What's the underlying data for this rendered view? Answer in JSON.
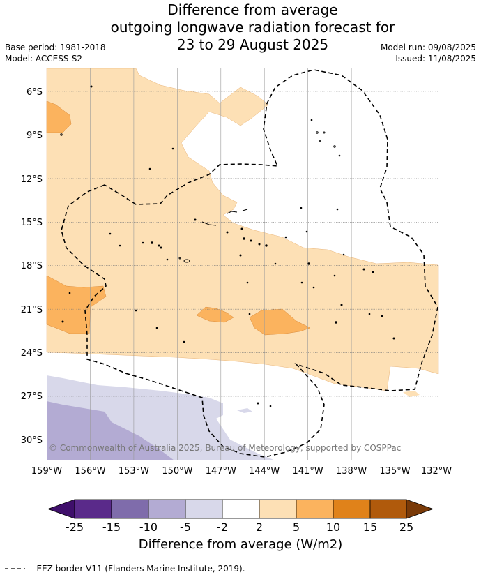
{
  "header": {
    "title_lines": [
      "Difference from average",
      "outgoing longwave radiation forecast for",
      "23 to 29 August 2025"
    ],
    "base_period": "Base period: 1981-2018",
    "model": "Model: ACCESS-S2",
    "model_run": "Model run: 09/08/2025",
    "issued": "Issued: 11/08/2025"
  },
  "map": {
    "lon_labels": [
      "159°W",
      "156°W",
      "153°W",
      "150°W",
      "147°W",
      "144°W",
      "141°W",
      "138°W",
      "135°W",
      "132°W"
    ],
    "lat_labels": [
      "6°S",
      "9°S",
      "12°S",
      "15°S",
      "18°S",
      "21°S",
      "24°S",
      "27°S",
      "30°S"
    ],
    "copyright": "© Commonwealth of Australia 2025, Bureau of Meteorology, supported by COSPPac",
    "legend_line": "-- EEZ border V11 (Flanders Marine Institute, 2019)."
  },
  "colorbar": {
    "label": "Difference from average (W/m2)",
    "tick_labels": [
      "-25",
      "-15",
      "-10",
      "-5",
      "-2",
      "2",
      "5",
      "10",
      "15",
      "25"
    ],
    "colors": [
      "#3f0f6b",
      "#5a2a8a",
      "#7f6cab",
      "#b3abd3",
      "#d8d8ea",
      "#ffffff",
      "#fde0b5",
      "#fbb35e",
      "#e0821a",
      "#b05a0c",
      "#7a3a08"
    ]
  }
}
